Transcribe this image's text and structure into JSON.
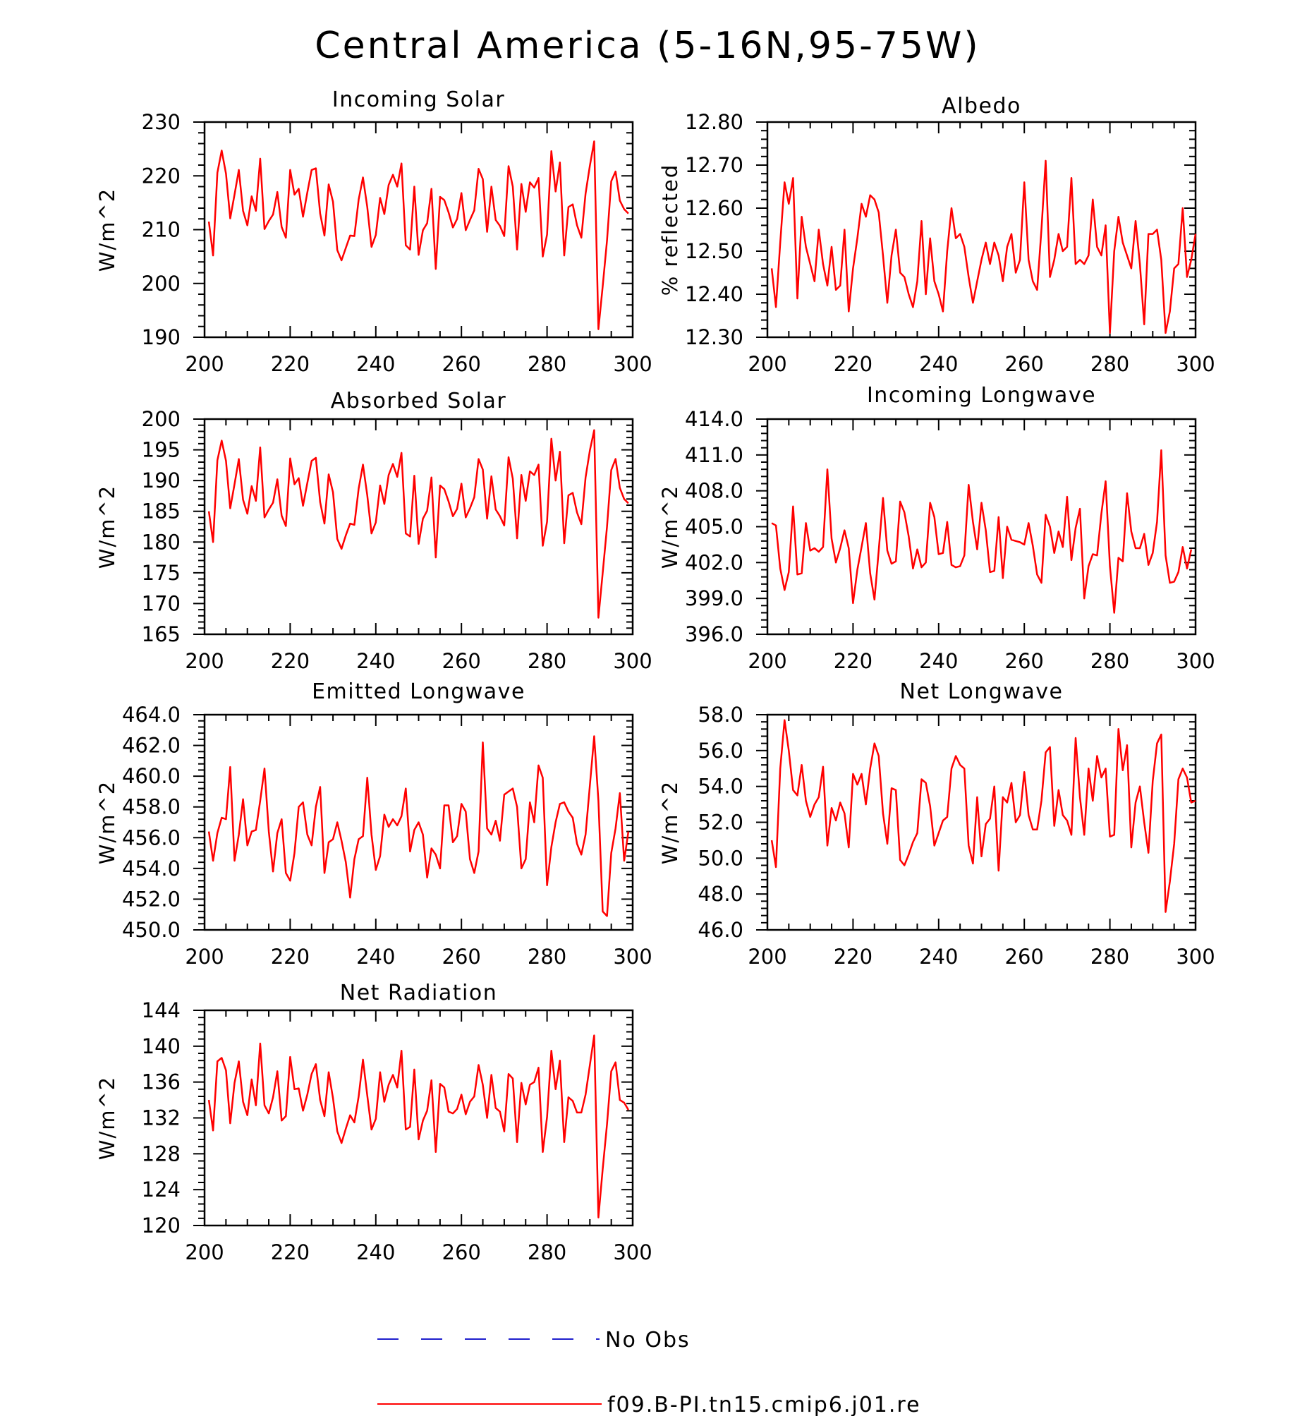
{
  "figure": {
    "title": "Central America (5-16N,95-75W)"
  },
  "legend": [
    {
      "label": "No Obs",
      "color": "#1f1fcc",
      "dash": "dashed"
    },
    {
      "label": "f09.B-PI.tn15.cmip6.j01.re",
      "color": "#ff0000",
      "dash": "solid"
    }
  ],
  "chart_data": [
    {
      "type": "line",
      "title": "Incoming Solar",
      "ylabel": "W/m^2",
      "xlim": [
        200,
        300
      ],
      "ylim": [
        190,
        230
      ],
      "xticks": [
        200,
        220,
        240,
        260,
        280,
        300
      ],
      "yticks": [
        "190",
        "200",
        "210",
        "220",
        "230"
      ],
      "x_start": 201,
      "x_step": 1,
      "series": [
        {
          "values": [
            211.5,
            205.2,
            220.6,
            224.7,
            220.4,
            212.1,
            216.5,
            221.1,
            213.5,
            210.8,
            216.2,
            213.5,
            223.2,
            210.1,
            211.6,
            212.8,
            217.0,
            210.5,
            208.5,
            221.1,
            216.5,
            217.6,
            212.4,
            216.9,
            221.1,
            221.4,
            213.0,
            208.9,
            218.4,
            215.2,
            206.2,
            204.3,
            206.6,
            208.9,
            208.8,
            215.6,
            219.7,
            214.2,
            206.8,
            209.0,
            215.9,
            212.9,
            218.3,
            220.2,
            218.0,
            222.3,
            207.1,
            206.3,
            218.0,
            205.3,
            209.9,
            211.2,
            217.6,
            202.7,
            216.1,
            215.5,
            213.2,
            210.4,
            212.0,
            216.8,
            209.9,
            211.8,
            213.6,
            221.3,
            219.4,
            209.6,
            218.0,
            211.8,
            210.7,
            208.8,
            221.8,
            218.0,
            206.3,
            218.5,
            213.3,
            218.8,
            217.8,
            219.6,
            205.0,
            209.1,
            224.6,
            217.1,
            222.5,
            205.2,
            214.2,
            214.7,
            210.8,
            208.5,
            216.7,
            221.9,
            226.4,
            191.5,
            199.5,
            208.0,
            219.0,
            220.8,
            215.4,
            213.8,
            213.0
          ]
        }
      ]
    },
    {
      "type": "line",
      "title": "Albedo",
      "ylabel": "% reflected",
      "xlim": [
        200,
        300
      ],
      "ylim": [
        12.3,
        12.8
      ],
      "xticks": [
        200,
        220,
        240,
        260,
        280,
        300
      ],
      "yticks": [
        "12.30",
        "12.40",
        "12.50",
        "12.60",
        "12.70",
        "12.80"
      ],
      "x_start": 201,
      "x_step": 1,
      "series": [
        {
          "values": [
            12.46,
            12.37,
            12.52,
            12.66,
            12.61,
            12.67,
            12.39,
            12.58,
            12.51,
            12.47,
            12.43,
            12.55,
            12.47,
            12.42,
            12.51,
            12.41,
            12.42,
            12.55,
            12.36,
            12.46,
            12.53,
            12.61,
            12.58,
            12.63,
            12.62,
            12.59,
            12.49,
            12.38,
            12.49,
            12.55,
            12.45,
            12.44,
            12.4,
            12.37,
            12.43,
            12.57,
            12.4,
            12.53,
            12.43,
            12.4,
            12.36,
            12.5,
            12.6,
            12.53,
            12.54,
            12.51,
            12.44,
            12.38,
            12.43,
            12.48,
            12.52,
            12.47,
            12.52,
            12.49,
            12.43,
            12.51,
            12.54,
            12.45,
            12.48,
            12.66,
            12.48,
            12.43,
            12.41,
            12.55,
            12.71,
            12.44,
            12.48,
            12.54,
            12.5,
            12.51,
            12.67,
            12.47,
            12.48,
            12.47,
            12.49,
            12.62,
            12.51,
            12.49,
            12.56,
            12.31,
            12.5,
            12.58,
            12.52,
            12.49,
            12.46,
            12.57,
            12.47,
            12.33,
            12.54,
            12.54,
            12.55,
            12.48,
            12.31,
            12.36,
            12.46,
            12.47,
            12.6,
            12.44,
            12.48,
            12.54
          ]
        }
      ]
    },
    {
      "type": "line",
      "title": "Absorbed Solar",
      "ylabel": "W/m^2",
      "xlim": [
        200,
        300
      ],
      "ylim": [
        165,
        200
      ],
      "xticks": [
        200,
        220,
        240,
        260,
        280,
        300
      ],
      "yticks": [
        "165",
        "170",
        "175",
        "180",
        "185",
        "190",
        "195",
        "200"
      ],
      "x_start": 201,
      "x_step": 1,
      "series": [
        {
          "values": [
            185.0,
            180.0,
            193.3,
            196.5,
            193.2,
            185.5,
            189.4,
            193.5,
            186.9,
            184.6,
            189.1,
            186.7,
            195.4,
            184.0,
            185.3,
            186.4,
            190.2,
            184.3,
            182.6,
            193.6,
            189.4,
            190.4,
            185.9,
            189.6,
            193.2,
            193.7,
            186.5,
            183.0,
            191.0,
            188.1,
            180.5,
            178.9,
            181.1,
            183.0,
            182.8,
            188.7,
            192.6,
            187.6,
            181.4,
            183.2,
            189.2,
            186.2,
            190.9,
            192.7,
            190.6,
            194.5,
            181.4,
            180.9,
            190.8,
            179.7,
            183.8,
            185.1,
            190.5,
            177.5,
            189.2,
            188.6,
            186.6,
            184.2,
            185.4,
            189.5,
            184.0,
            185.5,
            187.3,
            193.5,
            191.8,
            183.8,
            190.7,
            185.3,
            184.2,
            182.7,
            193.8,
            190.3,
            180.6,
            190.9,
            186.7,
            191.5,
            190.9,
            192.6,
            179.4,
            183.3,
            196.8,
            190.0,
            194.7,
            179.8,
            187.6,
            188.0,
            184.8,
            182.9,
            190.5,
            194.9,
            198.2,
            167.7,
            175.0,
            182.5,
            191.7,
            193.5,
            188.8,
            187.0,
            186.3
          ]
        }
      ]
    },
    {
      "type": "line",
      "title": "Incoming Longwave",
      "ylabel": "W/m^2",
      "xlim": [
        200,
        300
      ],
      "ylim": [
        396.0,
        414.0
      ],
      "xticks": [
        200,
        220,
        240,
        260,
        280,
        300
      ],
      "yticks": [
        "396.0",
        "399.0",
        "402.0",
        "405.0",
        "408.0",
        "411.0",
        "414.0"
      ],
      "x_start": 201,
      "x_step": 1,
      "series": [
        {
          "values": [
            405.3,
            405.1,
            401.5,
            399.7,
            401.2,
            406.7,
            401.0,
            401.1,
            405.3,
            403.0,
            403.2,
            402.9,
            403.3,
            409.8,
            404.0,
            402.0,
            403.2,
            404.7,
            403.2,
            398.6,
            401.4,
            403.3,
            405.3,
            401.1,
            398.9,
            403.0,
            407.4,
            403.0,
            401.9,
            402.1,
            407.1,
            406.2,
            404.2,
            401.5,
            403.1,
            401.6,
            402.0,
            407.0,
            405.8,
            402.7,
            402.8,
            405.4,
            401.8,
            401.6,
            401.7,
            402.6,
            408.5,
            405.4,
            403.1,
            407.0,
            404.7,
            401.2,
            401.3,
            405.8,
            400.7,
            405.0,
            403.9,
            403.8,
            403.7,
            403.5,
            405.3,
            403.4,
            401.0,
            400.3,
            406.0,
            405.0,
            402.8,
            404.6,
            403.3,
            407.5,
            402.2,
            404.9,
            406.5,
            399.0,
            401.7,
            402.7,
            402.6,
            406.1,
            408.8,
            401.7,
            397.8,
            402.4,
            402.1,
            407.8,
            404.6,
            403.2,
            403.2,
            404.4,
            401.8,
            402.8,
            405.4,
            411.4,
            402.6,
            400.3,
            400.4,
            401.2,
            403.3,
            401.5,
            403.1
          ]
        }
      ]
    },
    {
      "type": "line",
      "title": "Emitted Longwave",
      "ylabel": "W/m^2",
      "xlim": [
        200,
        300
      ],
      "ylim": [
        450.0,
        464.0
      ],
      "xticks": [
        200,
        220,
        240,
        260,
        280,
        300
      ],
      "yticks": [
        "450.0",
        "452.0",
        "454.0",
        "456.0",
        "458.0",
        "460.0",
        "462.0",
        "464.0"
      ],
      "x_start": 201,
      "x_step": 1,
      "series": [
        {
          "values": [
            456.4,
            454.5,
            456.3,
            457.3,
            457.2,
            460.6,
            454.5,
            456.2,
            458.5,
            455.5,
            456.4,
            456.5,
            458.4,
            460.5,
            456.4,
            453.8,
            456.3,
            457.2,
            453.7,
            453.2,
            455.0,
            458.0,
            458.3,
            456.2,
            455.5,
            458.0,
            459.3,
            453.7,
            455.7,
            455.9,
            457.0,
            455.8,
            454.4,
            452.1,
            454.6,
            455.9,
            456.1,
            459.9,
            456.2,
            453.9,
            454.8,
            457.5,
            456.7,
            457.2,
            456.8,
            457.4,
            459.2,
            455.1,
            456.5,
            457.0,
            456.2,
            453.4,
            455.3,
            454.9,
            454.0,
            458.1,
            458.1,
            455.7,
            456.1,
            458.2,
            457.7,
            454.6,
            453.7,
            455.1,
            462.2,
            456.6,
            456.2,
            457.1,
            455.8,
            458.8,
            459.0,
            459.2,
            458.0,
            454.0,
            454.6,
            458.3,
            457.0,
            460.7,
            459.9,
            452.9,
            455.4,
            457.0,
            458.2,
            458.3,
            457.7,
            457.3,
            455.6,
            454.9,
            456.2,
            459.4,
            462.6,
            458.4,
            451.2,
            450.9,
            455.0,
            456.6,
            458.9,
            454.5,
            456.4
          ]
        }
      ]
    },
    {
      "type": "line",
      "title": "Net Longwave",
      "ylabel": "W/m^2",
      "xlim": [
        200,
        300
      ],
      "ylim": [
        46.0,
        58.0
      ],
      "xticks": [
        200,
        220,
        240,
        260,
        280,
        300
      ],
      "yticks": [
        "46.0",
        "48.0",
        "50.0",
        "52.0",
        "54.0",
        "56.0",
        "58.0"
      ],
      "x_start": 201,
      "x_step": 1,
      "series": [
        {
          "values": [
            51.0,
            49.5,
            55.0,
            57.7,
            56.0,
            53.8,
            53.5,
            55.2,
            53.2,
            52.3,
            53.0,
            53.4,
            55.1,
            50.7,
            52.8,
            52.1,
            53.1,
            52.5,
            50.6,
            54.7,
            54.1,
            54.7,
            53.0,
            55.0,
            56.4,
            55.7,
            52.5,
            50.8,
            53.9,
            53.8,
            49.9,
            49.6,
            50.2,
            50.9,
            51.4,
            54.4,
            54.2,
            52.9,
            50.7,
            51.4,
            52.1,
            52.3,
            55.0,
            55.7,
            55.2,
            55.0,
            50.7,
            49.7,
            53.4,
            50.1,
            51.9,
            52.2,
            54.0,
            49.3,
            53.4,
            53.1,
            54.2,
            52.0,
            52.4,
            54.8,
            52.4,
            51.6,
            51.6,
            53.2,
            55.9,
            56.2,
            51.8,
            53.8,
            52.4,
            52.1,
            51.3,
            56.7,
            53.4,
            51.3,
            55.0,
            53.2,
            55.7,
            54.5,
            55.0,
            51.2,
            51.3,
            57.2,
            54.9,
            56.3,
            50.6,
            53.1,
            54.0,
            52.0,
            50.3,
            54.3,
            56.4,
            56.9,
            47.0,
            48.7,
            50.8,
            54.4,
            55.0,
            54.5,
            53.1,
            53.2
          ]
        }
      ]
    },
    {
      "type": "line",
      "title": "Net Radiation",
      "ylabel": "W/m^2",
      "xlim": [
        200,
        300
      ],
      "ylim": [
        120,
        144
      ],
      "xticks": [
        200,
        220,
        240,
        260,
        280,
        300
      ],
      "yticks": [
        "120",
        "124",
        "128",
        "132",
        "136",
        "140",
        "144"
      ],
      "x_start": 201,
      "x_step": 1,
      "series": [
        {
          "values": [
            134.0,
            130.6,
            138.3,
            138.7,
            137.3,
            131.4,
            135.9,
            138.3,
            133.8,
            132.3,
            136.3,
            133.4,
            140.3,
            133.4,
            132.5,
            134.3,
            137.2,
            131.7,
            132.2,
            138.8,
            135.2,
            135.3,
            132.8,
            134.6,
            136.9,
            138.0,
            134.0,
            132.2,
            137.1,
            134.2,
            130.5,
            129.2,
            130.8,
            132.3,
            131.5,
            134.4,
            138.5,
            134.5,
            130.7,
            131.9,
            137.1,
            133.8,
            135.7,
            136.8,
            135.4,
            139.5,
            130.7,
            131.0,
            137.4,
            129.6,
            131.7,
            132.8,
            136.2,
            128.2,
            135.8,
            135.4,
            132.7,
            132.5,
            133.0,
            134.6,
            132.4,
            133.8,
            134.4,
            137.9,
            135.7,
            132.0,
            136.8,
            133.1,
            132.7,
            130.5,
            136.9,
            136.4,
            129.3,
            135.9,
            133.5,
            135.7,
            136.0,
            137.6,
            128.2,
            132.1,
            139.5,
            135.2,
            138.4,
            129.3,
            134.3,
            133.9,
            132.6,
            132.6,
            134.6,
            137.9,
            141.2,
            120.9,
            126.3,
            131.3,
            137.2,
            138.2,
            134.0,
            133.7,
            132.9
          ]
        }
      ]
    }
  ]
}
